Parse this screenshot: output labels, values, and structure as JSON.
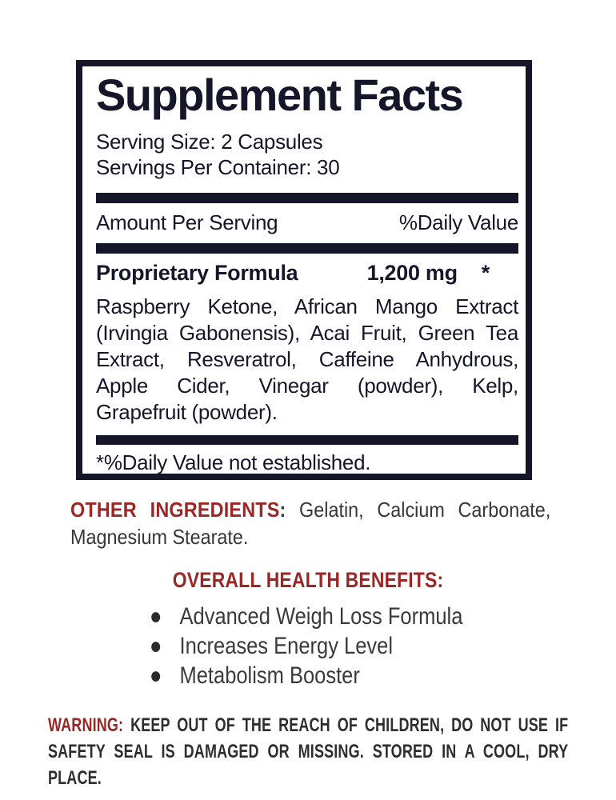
{
  "panel": {
    "title": "Supplement Facts",
    "serving_size": "Serving Size: 2 Capsules",
    "servings_per_container": "Servings Per Container: 30",
    "amount_per_serving": "Amount Per Serving",
    "daily_value": "%Daily Value",
    "formula_name": "Proprietary Formula",
    "formula_amount": "1,200 mg",
    "formula_daily_value": "*",
    "ingredients": "Raspberry Ketone, African Mango Extract (Irvingia Gabonensis), Acai Fruit, Green Tea Extract, Resveratrol, Caffeine Anhydrous, Apple Cider, Vinegar (powder), Kelp, Grapefruit (powder).",
    "footnote": "*%Daily Value not established."
  },
  "other_ingredients": {
    "label": "OTHER INGREDIENTS",
    "separator": ":",
    "text": "Gelatin, Calcium Carbonate, Magnesium Stearate."
  },
  "benefits": {
    "heading": "OVERALL HEALTH BENEFITS:",
    "bullet_icon": "●",
    "items": [
      "Advanced Weigh Loss Formula",
      "Increases Energy Level",
      "Metabolism Booster"
    ]
  },
  "warning": {
    "label": "WARNING:",
    "text": "KEEP OUT OF THE REACH OF CHILDREN, DO NOT USE IF SAFETY SEAL IS DAMAGED OR MISSING. STORED IN A COOL, DRY PLACE."
  },
  "colors": {
    "ink": "#16162b",
    "accent_red": "#9b2626",
    "body_gray": "#373737"
  }
}
